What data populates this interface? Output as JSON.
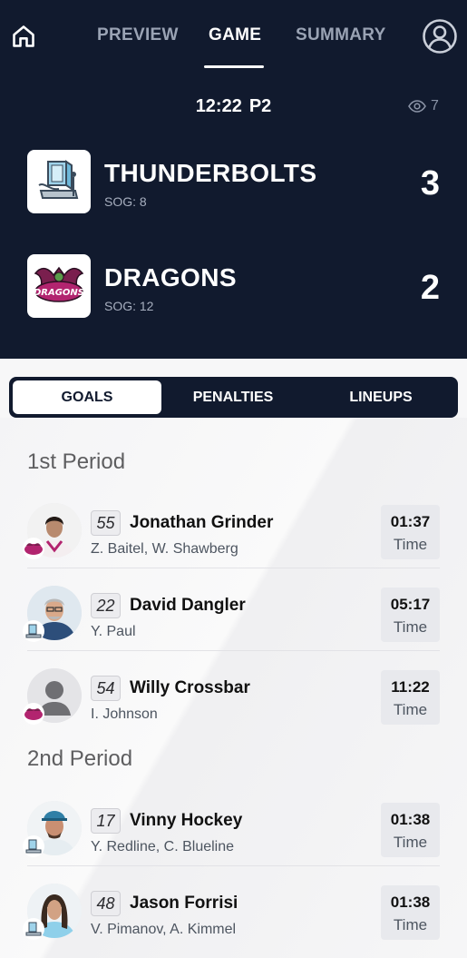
{
  "nav": {
    "home_icon": "home-icon",
    "tabs": [
      "PREVIEW",
      "GAME",
      "SUMMARY"
    ],
    "active_tab": "GAME",
    "profile_icon": "user-circle-icon"
  },
  "game": {
    "clock": "12:22",
    "period": "P2",
    "viewers": "7"
  },
  "teams": {
    "home": {
      "name": "THUNDERBOLTS",
      "sog": "SOG: 8",
      "score": "3"
    },
    "away": {
      "name": "DRAGONS",
      "sog": "SOG: 12",
      "score": "2"
    }
  },
  "section_tabs": [
    "GOALS",
    "PENALTIES",
    "LINEUPS"
  ],
  "active_section": "GOALS",
  "periods": [
    {
      "title": "1st Period",
      "goals": [
        {
          "number": "55",
          "scorer": "Jonathan Grinder",
          "assists": "Z. Baitel, W. Shawberg",
          "time": "01:37",
          "time_label": "Time"
        },
        {
          "number": "22",
          "scorer": "David Dangler",
          "assists": "Y. Paul",
          "time": "05:17",
          "time_label": "Time"
        },
        {
          "number": "54",
          "scorer": "Willy Crossbar",
          "assists": "I. Johnson",
          "time": "11:22",
          "time_label": "Time"
        }
      ]
    },
    {
      "title": "2nd Period",
      "goals": [
        {
          "number": "17",
          "scorer": "Vinny Hockey",
          "assists": "Y. Redline, C. Blueline",
          "time": "01:38",
          "time_label": "Time"
        },
        {
          "number": "48",
          "scorer": "Jason Forrisi",
          "assists": "V. Pimanov, A. Kimmel",
          "time": "01:38",
          "time_label": "Time"
        }
      ]
    }
  ],
  "colors": {
    "header_bg": "#111a2e",
    "dragons_accent": "#b2246f",
    "thunderbolts_accent": "#6db7d8"
  }
}
